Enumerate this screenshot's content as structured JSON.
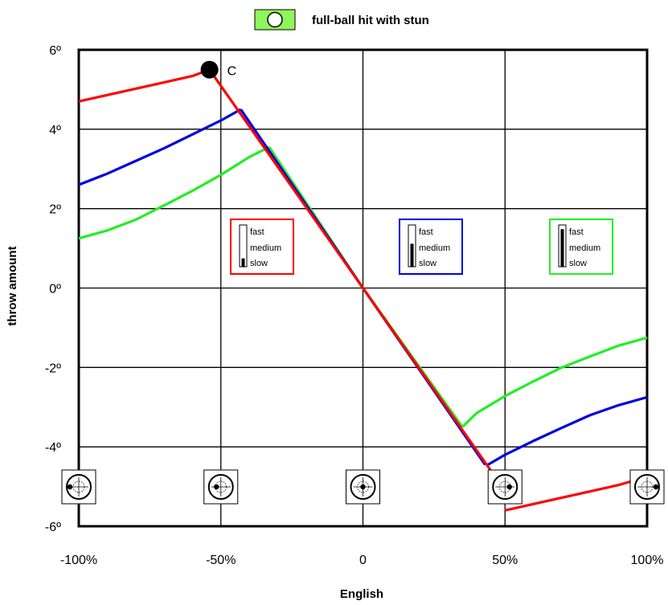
{
  "chart_data": {
    "type": "line",
    "legend": {
      "label": "full-ball hit with stun",
      "swatch_color": "#8ef55a",
      "icon": "cue-ball-circle-icon"
    },
    "xlabel": "English",
    "ylabel": "throw amount",
    "xlim": [
      -100,
      100
    ],
    "ylim": [
      -6,
      6
    ],
    "x_ticks": [
      {
        "value": -100,
        "label": "-100%"
      },
      {
        "value": -50,
        "label": "-50%"
      },
      {
        "value": 0,
        "label": "0"
      },
      {
        "value": 50,
        "label": "50%"
      },
      {
        "value": 100,
        "label": "100%"
      }
    ],
    "y_ticks": [
      {
        "value": 6,
        "label": "6º"
      },
      {
        "value": 4,
        "label": "4º"
      },
      {
        "value": 2,
        "label": "2º"
      },
      {
        "value": 0,
        "label": "0º"
      },
      {
        "value": -2,
        "label": "-2º"
      },
      {
        "value": -4,
        "label": "-4º"
      },
      {
        "value": -6,
        "label": "-6º"
      }
    ],
    "grid": true,
    "series": [
      {
        "color": "#ff0000",
        "speed": "slow",
        "left_branch": [
          [
            -100,
            4.7
          ],
          [
            -90,
            4.86
          ],
          [
            -80,
            5.02
          ],
          [
            -70,
            5.18
          ],
          [
            -60,
            5.34
          ],
          [
            -54,
            5.5
          ]
        ],
        "center_branch": [
          [
            -54,
            5.5
          ],
          [
            0,
            0
          ],
          [
            46,
            -4.7
          ]
        ],
        "right_branch": [
          [
            50,
            -5.6
          ],
          [
            60,
            -5.44
          ],
          [
            70,
            -5.28
          ],
          [
            80,
            -5.12
          ],
          [
            90,
            -4.96
          ],
          [
            100,
            -4.75
          ]
        ]
      },
      {
        "color": "#0000dd",
        "speed": "medium",
        "left_branch": [
          [
            -100,
            2.6
          ],
          [
            -90,
            2.88
          ],
          [
            -80,
            3.2
          ],
          [
            -70,
            3.52
          ],
          [
            -60,
            3.87
          ],
          [
            -50,
            4.22
          ],
          [
            -43,
            4.5
          ]
        ],
        "center_branch": [
          [
            -43,
            4.5
          ],
          [
            0,
            0
          ],
          [
            43,
            -4.45
          ]
        ],
        "right_branch": [
          [
            44,
            -4.45
          ],
          [
            50,
            -4.2
          ],
          [
            60,
            -3.85
          ],
          [
            70,
            -3.52
          ],
          [
            80,
            -3.2
          ],
          [
            90,
            -2.95
          ],
          [
            100,
            -2.75
          ]
        ]
      },
      {
        "color": "#22ee22",
        "speed": "fast",
        "left_branch": [
          [
            -100,
            1.25
          ],
          [
            -90,
            1.45
          ],
          [
            -80,
            1.72
          ],
          [
            -70,
            2.08
          ],
          [
            -60,
            2.45
          ],
          [
            -50,
            2.85
          ],
          [
            -40,
            3.3
          ],
          [
            -33,
            3.55
          ]
        ],
        "center_branch": [
          [
            -33,
            3.55
          ],
          [
            0,
            0
          ],
          [
            35,
            -3.5
          ]
        ],
        "right_branch": [
          [
            35,
            -3.5
          ],
          [
            40,
            -3.15
          ],
          [
            50,
            -2.72
          ],
          [
            60,
            -2.35
          ],
          [
            70,
            -2.0
          ],
          [
            80,
            -1.72
          ],
          [
            90,
            -1.45
          ],
          [
            100,
            -1.25
          ]
        ]
      }
    ],
    "speed_boxes": [
      {
        "border_color": "#ff0000",
        "labels": [
          "fast",
          "medium",
          "slow"
        ],
        "level": 0.2
      },
      {
        "border_color": "#0000dd",
        "labels": [
          "fast",
          "medium",
          "slow"
        ],
        "level": 0.55
      },
      {
        "border_color": "#22ee22",
        "labels": [
          "fast",
          "medium",
          "slow"
        ],
        "level": 0.9
      }
    ],
    "point_annotation": {
      "label": "C",
      "x": -54,
      "y": 5.5
    },
    "cue_ball_icons": [
      {
        "x": -100,
        "dot_offset": -1.0
      },
      {
        "x": -50,
        "dot_offset": -0.5
      },
      {
        "x": 0,
        "dot_offset": 0
      },
      {
        "x": 50,
        "dot_offset": 0.5
      },
      {
        "x": 100,
        "dot_offset": 1.0
      }
    ]
  }
}
